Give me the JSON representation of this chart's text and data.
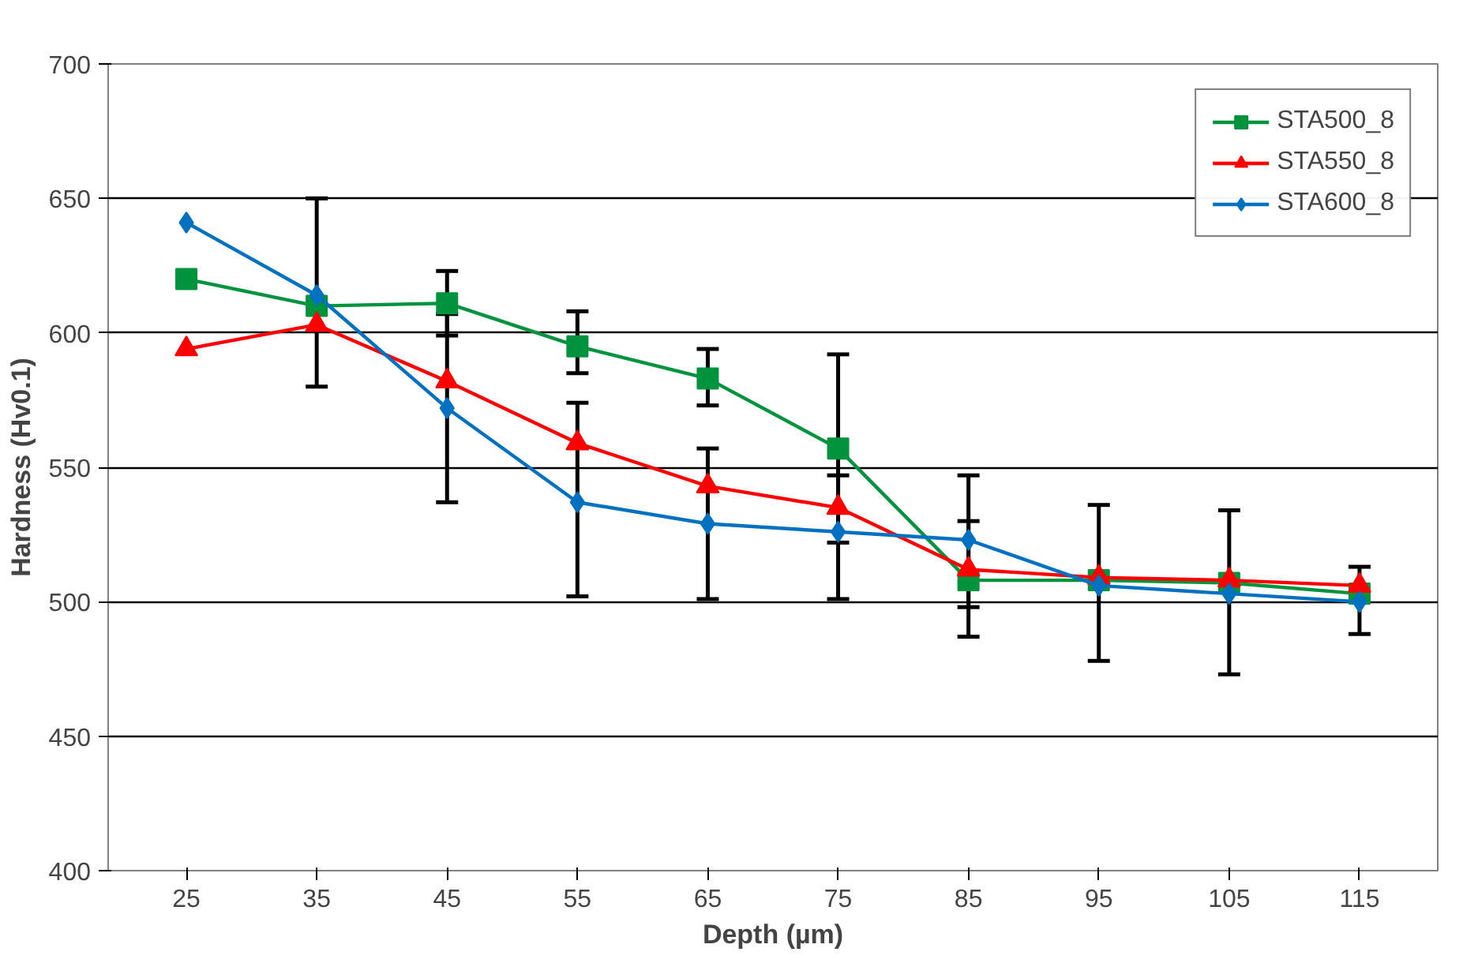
{
  "chart_data": {
    "type": "line",
    "xlabel": "Depth (µm)",
    "ylabel": "Hardness (Hv0.1)",
    "categories": [
      "25",
      "35",
      "45",
      "55",
      "65",
      "75",
      "85",
      "95",
      "105",
      "115"
    ],
    "ylim": [
      400,
      700
    ],
    "yticks": [
      400,
      450,
      500,
      550,
      600,
      650,
      700
    ],
    "grid": "y",
    "legend": "top right",
    "series": [
      {
        "name": "STA500_8",
        "color": "#00933d",
        "marker": "square",
        "values": [
          620,
          610,
          611,
          595,
          583,
          557,
          508,
          508,
          507,
          503
        ],
        "errors": [
          null,
          null,
          [
            599,
            623
          ],
          [
            585,
            608
          ],
          [
            573,
            594
          ],
          [
            522,
            592
          ],
          [
            487,
            530
          ],
          null,
          null,
          null
        ]
      },
      {
        "name": "STA550_8",
        "color": "#ff0000",
        "marker": "triangle",
        "values": [
          594,
          603,
          582,
          559,
          543,
          535,
          512,
          509,
          508,
          506
        ]
      },
      {
        "name": "STA600_8",
        "color": "#0070c0",
        "marker": "diamond",
        "values": [
          641,
          614,
          572,
          537,
          529,
          526,
          523,
          506,
          503,
          500
        ],
        "errors": [
          null,
          [
            580,
            650
          ],
          [
            537,
            607
          ],
          [
            502,
            574
          ],
          [
            501,
            557
          ],
          [
            501,
            547
          ],
          [
            498,
            547
          ],
          [
            478,
            536
          ],
          [
            473,
            534
          ],
          [
            488,
            513
          ]
        ]
      }
    ]
  }
}
